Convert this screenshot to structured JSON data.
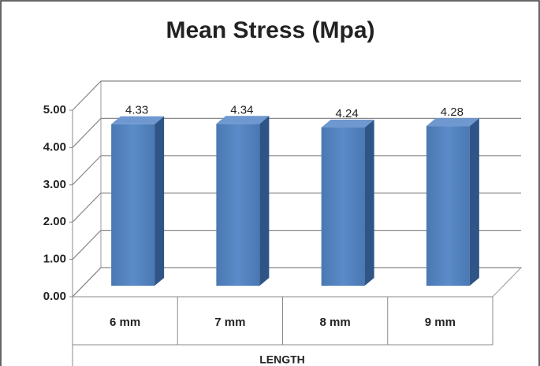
{
  "chart_data": {
    "type": "bar3d",
    "title": "Mean Stress (Mpa)",
    "x_label": "LENGTH",
    "categories": [
      "6 mm",
      "7 mm",
      "8 mm",
      "9 mm"
    ],
    "values": [
      4.33,
      4.34,
      4.24,
      4.28
    ],
    "color": "#4f81bd",
    "ylim": [
      0,
      5
    ],
    "yticks": [
      {
        "value": 0,
        "label": "0.00"
      },
      {
        "value": 1,
        "label": "1.00"
      },
      {
        "value": 2,
        "label": "2.00"
      },
      {
        "value": 3,
        "label": "3.00"
      },
      {
        "value": 4,
        "label": "4.00"
      },
      {
        "value": 5,
        "label": "5.00"
      }
    ],
    "grid": true
  }
}
